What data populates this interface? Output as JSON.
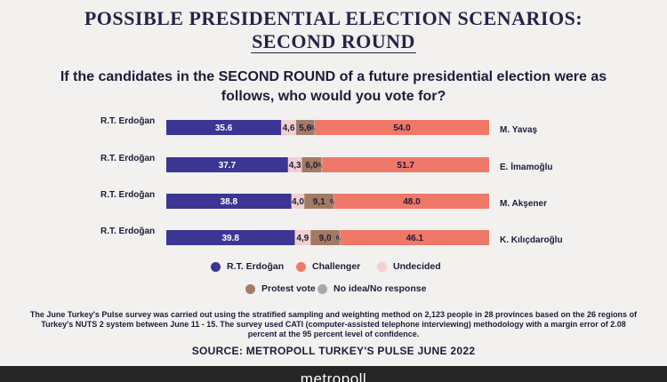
{
  "header": {
    "title_line1": "POSSIBLE PRESIDENTIAL ELECTION SCENARIOS:",
    "title_line2": "SECOND ROUND",
    "question": "If the candidates in the SECOND ROUND of a future presidential election were as follows, who would you vote for?"
  },
  "chart_data": {
    "type": "bar",
    "stacked": true,
    "orientation": "horizontal",
    "left_labels": [
      "R.T. Erdoğan",
      "R.T. Erdoğan",
      "R.T. Erdoğan",
      "R.T. Erdoğan"
    ],
    "right_labels": [
      "M. Yavaş",
      "E. İmamoğlu",
      "M. Akşener",
      "K. Kılıçdaroğlu"
    ],
    "series": [
      {
        "name": "R.T. Erdoğan",
        "color": "#3b3594",
        "values": [
          35.6,
          37.7,
          38.8,
          39.8
        ],
        "labels": [
          "35.6",
          "37.7",
          "38.8",
          "39.8"
        ]
      },
      {
        "name": "Undecided",
        "color": "#f2cfd0",
        "values": [
          4.6,
          4.3,
          4.0,
          4.9
        ],
        "labels": [
          "4,6",
          "4,3",
          "4,0",
          "4,9"
        ]
      },
      {
        "name": "Protest vote",
        "color": "#a37a64",
        "values": [
          5.6,
          6.0,
          9.1,
          9.0
        ],
        "labels": [
          "5,6",
          "6,0",
          "9,1",
          "9,0"
        ]
      },
      {
        "name": "No idea/No response",
        "color": "#a9a9a9",
        "values": [
          0.2,
          0.3,
          0.2,
          0.2
        ],
        "labels": [
          "0,2",
          "0,3",
          "0,2",
          "0,2"
        ]
      },
      {
        "name": "Challenger",
        "color": "#f07869",
        "values": [
          54.0,
          51.7,
          48.0,
          46.1
        ],
        "labels": [
          "54.0",
          "51.7",
          "48.0",
          "46.1"
        ]
      }
    ],
    "legend_order": [
      "R.T. Erdoğan",
      "Challenger",
      "Undecided",
      "Protest vote",
      "No idea/No response"
    ]
  },
  "note": "The June Turkey's Pulse survey was carried out using the stratified sampling and weighting method on 2,123 people in 28 provinces based on the 26 regions of Turkey's NUTS 2 system between June 11 - 15. The survey used CATI (computer-assisted telephone interviewing) methodology with a margin error of 2.08 percent at the 95 percent level of confidence.",
  "source": "SOURCE: METROPOLL TURKEY'S PULSE JUNE 2022",
  "footer": {
    "brand": "metropoll"
  }
}
